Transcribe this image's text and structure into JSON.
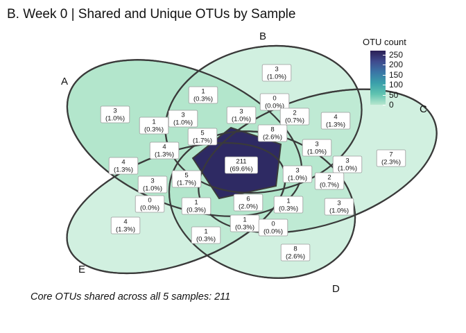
{
  "title": "B. Week 0 | Shared and Unique OTUs by Sample",
  "caption": "Core OTUs shared across all 5 samples: 211",
  "legend": {
    "title": "OTU count",
    "ticks": [
      "250",
      "200",
      "150",
      "100",
      "50",
      "0"
    ],
    "tick_values": [
      250,
      200,
      150,
      100,
      50,
      0
    ]
  },
  "colors": {
    "low": "#b3e6cc",
    "high": "#2e2a63",
    "outline": "#3a3a3a"
  },
  "sets": [
    {
      "id": "A",
      "label": "A"
    },
    {
      "id": "B",
      "label": "B"
    },
    {
      "id": "C",
      "label": "C"
    },
    {
      "id": "D",
      "label": "D"
    },
    {
      "id": "E",
      "label": "E"
    }
  ],
  "regions": [
    {
      "count": "3",
      "pct": "(1.0%)",
      "value": 3
    },
    {
      "count": "1",
      "pct": "(0.3%)",
      "value": 1
    },
    {
      "count": "0",
      "pct": "(0.0%)",
      "value": 0
    },
    {
      "count": "3",
      "pct": "(1.0%)",
      "value": 3
    },
    {
      "count": "3",
      "pct": "(1.0%)",
      "value": 3
    },
    {
      "count": "2",
      "pct": "(0.7%)",
      "value": 2
    },
    {
      "count": "4",
      "pct": "(1.3%)",
      "value": 4
    },
    {
      "count": "1",
      "pct": "(0.3%)",
      "value": 1
    },
    {
      "count": "3",
      "pct": "(1.0%)",
      "value": 3
    },
    {
      "count": "5",
      "pct": "(1.7%)",
      "value": 5
    },
    {
      "count": "8",
      "pct": "(2.6%)",
      "value": 8
    },
    {
      "count": "4",
      "pct": "(1.3%)",
      "value": 4
    },
    {
      "count": "3",
      "pct": "(1.0%)",
      "value": 3
    },
    {
      "count": "7",
      "pct": "(2.3%)",
      "value": 7
    },
    {
      "count": "4",
      "pct": "(1.3%)",
      "value": 4
    },
    {
      "count": "211",
      "pct": "(69.6%)",
      "value": 211
    },
    {
      "count": "3",
      "pct": "(1.0%)",
      "value": 3
    },
    {
      "count": "3",
      "pct": "(1.0%)",
      "value": 3
    },
    {
      "count": "5",
      "pct": "(1.7%)",
      "value": 5
    },
    {
      "count": "2",
      "pct": "(0.7%)",
      "value": 2
    },
    {
      "count": "3",
      "pct": "(1.0%)",
      "value": 3
    },
    {
      "count": "0",
      "pct": "(0.0%)",
      "value": 0
    },
    {
      "count": "1",
      "pct": "(0.3%)",
      "value": 1
    },
    {
      "count": "6",
      "pct": "(2.0%)",
      "value": 6
    },
    {
      "count": "1",
      "pct": "(0.3%)",
      "value": 1
    },
    {
      "count": "3",
      "pct": "(1.0%)",
      "value": 3
    },
    {
      "count": "4",
      "pct": "(1.3%)",
      "value": 4
    },
    {
      "count": "1",
      "pct": "(0.3%)",
      "value": 1
    },
    {
      "count": "0",
      "pct": "(0.0%)",
      "value": 0
    },
    {
      "count": "1",
      "pct": "(0.3%)",
      "value": 1
    },
    {
      "count": "8",
      "pct": "(2.6%)",
      "value": 8
    }
  ]
}
